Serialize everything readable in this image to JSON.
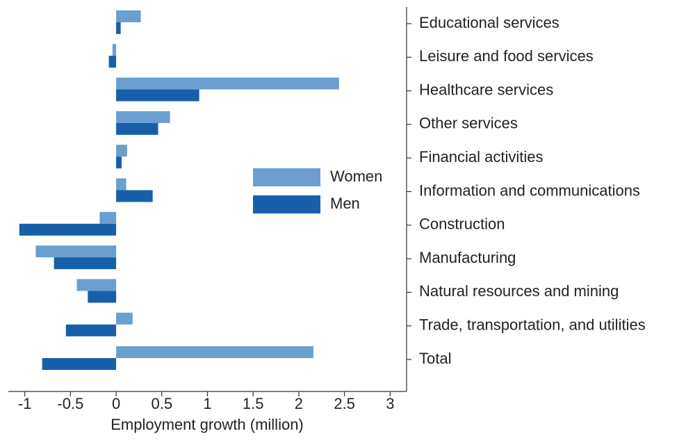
{
  "chart_data": {
    "type": "bar",
    "orientation": "horizontal",
    "x_label": "Employment growth (million)",
    "categories": [
      "Educational services",
      "Leisure and food services",
      "Healthcare services",
      "Other services",
      "Financial activities",
      "Information and communications",
      "Construction",
      "Manufacturing",
      "Natural resources and mining",
      "Trade, transportation, and utilities",
      "Total"
    ],
    "series": [
      {
        "name": "Women",
        "color": "#6a9fcf",
        "values": [
          0.27,
          -0.04,
          2.44,
          0.59,
          0.12,
          0.11,
          -0.18,
          -0.88,
          -0.43,
          0.18,
          2.16
        ]
      },
      {
        "name": "Men",
        "color": "#1760a9",
        "values": [
          0.05,
          -0.08,
          0.91,
          0.46,
          0.06,
          0.4,
          -1.06,
          -0.68,
          -0.31,
          -0.55,
          -0.81
        ]
      }
    ],
    "xlim": [
      -1.18,
      3.18
    ],
    "xticks": [
      -1,
      -0.5,
      0,
      0.5,
      1,
      1.5,
      2,
      2.5,
      3
    ],
    "grid": false
  }
}
